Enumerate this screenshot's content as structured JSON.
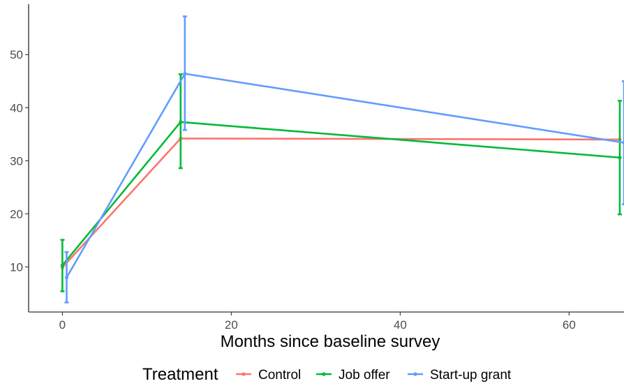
{
  "chart_data": {
    "type": "line",
    "xlabel": "Months since baseline survey",
    "ylabel": "",
    "xlim": [
      -4,
      66.5
    ],
    "ylim": [
      1.5,
      59.5
    ],
    "x_ticks": [
      0,
      20,
      40,
      60
    ],
    "y_ticks": [
      10,
      20,
      30,
      40,
      50
    ],
    "grid": false,
    "legend": {
      "title": "Treatment",
      "placement": "bottom"
    },
    "series": [
      {
        "name": "Control",
        "color": "#F8766D",
        "x": [
          0,
          14,
          66
        ],
        "y": [
          9.9,
          34.2,
          34.0
        ],
        "err_lower": [
          null,
          null,
          null
        ],
        "err_upper": [
          null,
          null,
          null
        ]
      },
      {
        "name": "Job offer",
        "color": "#00BA38",
        "x": [
          0,
          14,
          66
        ],
        "y": [
          10.3,
          37.3,
          30.6
        ],
        "err_lower": [
          5.4,
          28.6,
          19.9
        ],
        "err_upper": [
          15.1,
          46.3,
          41.3
        ]
      },
      {
        "name": "Start-up grant",
        "color": "#619CFF",
        "x": [
          0.5,
          14.5,
          66.5
        ],
        "y": [
          8.0,
          46.4,
          33.4
        ],
        "err_lower": [
          3.3,
          35.8,
          21.8
        ],
        "err_upper": [
          12.8,
          57.2,
          45.0
        ]
      }
    ]
  }
}
